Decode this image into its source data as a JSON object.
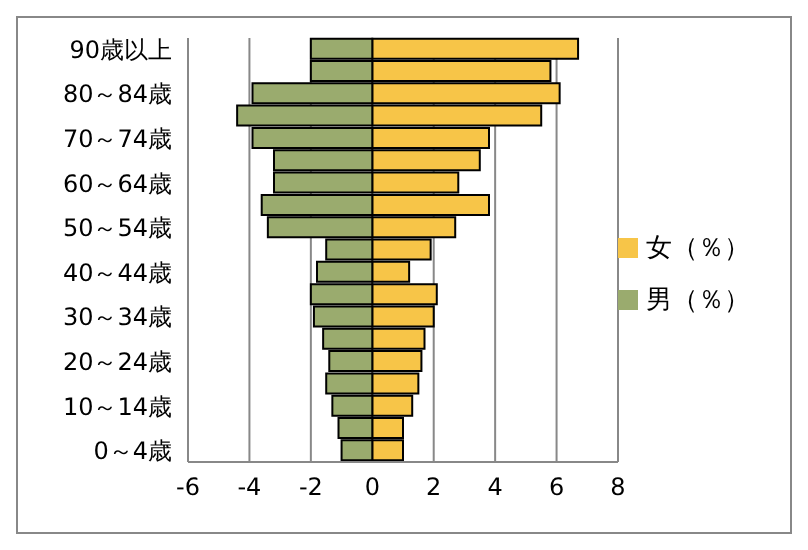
{
  "chart_data": {
    "type": "bar",
    "orientation": "horizontal",
    "stacked": true,
    "categories": [
      "90歳以上",
      null,
      "80～84歳",
      null,
      "70～74歳",
      null,
      "60～64歳",
      null,
      "50～54歳",
      null,
      "40～44歳",
      null,
      "30～34歳",
      null,
      "20～24歳",
      null,
      "10～14歳",
      null,
      "0～4歳"
    ],
    "series": [
      {
        "name": "女（％）",
        "color": "#f7c548",
        "values": [
          6.7,
          5.8,
          6.1,
          5.5,
          3.8,
          3.5,
          2.8,
          3.8,
          2.7,
          1.9,
          1.2,
          2.1,
          2.0,
          1.7,
          1.6,
          1.5,
          1.3,
          1.0,
          1.0
        ]
      },
      {
        "name": "男（％）",
        "color": "#9aab6e",
        "values": [
          -2.0,
          -2.0,
          -3.9,
          -4.4,
          -3.9,
          -3.2,
          -3.2,
          -3.6,
          -3.4,
          -1.5,
          -1.8,
          -2.0,
          -1.9,
          -1.6,
          -1.4,
          -1.5,
          -1.3,
          -1.1,
          -1.0
        ]
      }
    ],
    "xlim": [
      -6,
      8
    ],
    "xticks": [
      -6,
      -4,
      -2,
      0,
      2,
      4,
      6,
      8
    ],
    "grid": "x",
    "legend": "right"
  }
}
